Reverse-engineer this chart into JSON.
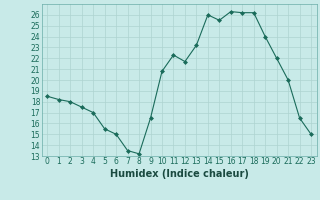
{
  "x": [
    0,
    1,
    2,
    3,
    4,
    5,
    6,
    7,
    8,
    9,
    10,
    11,
    12,
    13,
    14,
    15,
    16,
    17,
    18,
    19,
    20,
    21,
    22,
    23
  ],
  "y": [
    18.5,
    18.2,
    18.0,
    17.5,
    17.0,
    15.5,
    15.0,
    13.5,
    13.2,
    16.5,
    20.8,
    22.3,
    21.7,
    23.2,
    26.0,
    25.5,
    26.3,
    26.2,
    26.2,
    24.0,
    22.0,
    20.0,
    16.5,
    15.0
  ],
  "line_color": "#1a6b5a",
  "marker": "D",
  "marker_size": 2,
  "bg_color": "#c8eae8",
  "grid_color": "#aed4d0",
  "xlabel": "Humidex (Indice chaleur)",
  "ylim": [
    13,
    27
  ],
  "xlim": [
    -0.5,
    23.5
  ],
  "yticks": [
    13,
    14,
    15,
    16,
    17,
    18,
    19,
    20,
    21,
    22,
    23,
    24,
    25,
    26
  ],
  "xticks": [
    0,
    1,
    2,
    3,
    4,
    5,
    6,
    7,
    8,
    9,
    10,
    11,
    12,
    13,
    14,
    15,
    16,
    17,
    18,
    19,
    20,
    21,
    22,
    23
  ],
  "xtick_labels": [
    "0",
    "1",
    "2",
    "3",
    "4",
    "5",
    "6",
    "7",
    "8",
    "9",
    "10",
    "11",
    "12",
    "13",
    "14",
    "15",
    "16",
    "17",
    "18",
    "19",
    "20",
    "21",
    "22",
    "23"
  ],
  "tick_fontsize": 5.5,
  "xlabel_fontsize": 7
}
